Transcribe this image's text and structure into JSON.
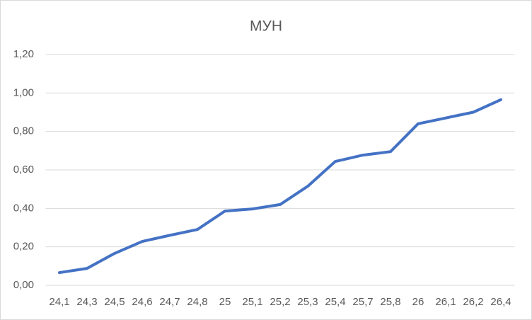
{
  "chart_data": {
    "type": "line",
    "title": "МУН",
    "categories": [
      "24,1",
      "24,3",
      "24,5",
      "24,6",
      "24,7",
      "24,8",
      "25",
      "25,1",
      "25,2",
      "25,3",
      "25,4",
      "25,7",
      "25,8",
      "26",
      "26,1",
      "26,2",
      "26,4"
    ],
    "values": [
      0.066,
      0.088,
      0.166,
      0.228,
      0.26,
      0.29,
      0.386,
      0.397,
      0.42,
      0.515,
      0.644,
      0.677,
      0.695,
      0.84,
      0.87,
      0.9,
      0.965
    ],
    "color": "#4472c4",
    "ylim": [
      0,
      1.2
    ],
    "yticks": [
      {
        "value": 0,
        "label": "0,00"
      },
      {
        "value": 0.2,
        "label": "0,20"
      },
      {
        "value": 0.4,
        "label": "0,40"
      },
      {
        "value": 0.6,
        "label": "0,60"
      },
      {
        "value": 0.8,
        "label": "0,80"
      },
      {
        "value": 1,
        "label": "1,00"
      },
      {
        "value": 1.2,
        "label": "1,20"
      }
    ],
    "grid": true
  }
}
